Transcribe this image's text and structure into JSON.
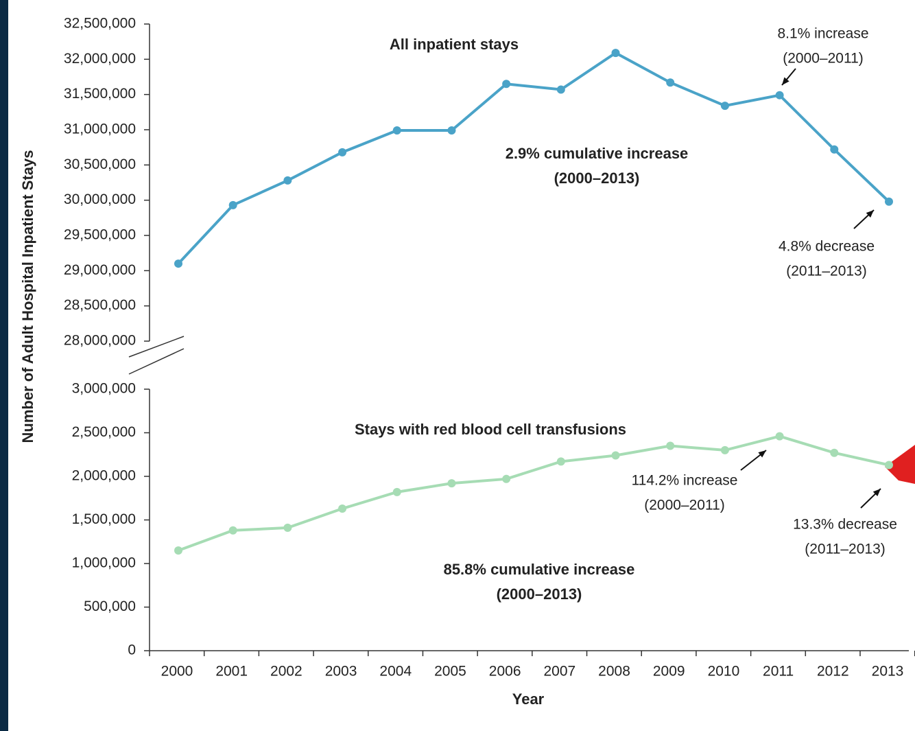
{
  "chart_data": [
    {
      "type": "line",
      "title": "All inpatient stays",
      "ylabel": "Number of Adult Hospital Inpatient Stays",
      "color": "#4aa3c8",
      "values": [
        29100000,
        29930000,
        30280000,
        30680000,
        30990000,
        30990000,
        31650000,
        31570000,
        32090000,
        31670000,
        31340000,
        31490000,
        30720000,
        29980000
      ],
      "ylim": [
        28000000,
        32500000
      ],
      "yticks": [
        {
          "value": 28000000,
          "label": "28,000,000"
        },
        {
          "value": 28500000,
          "label": "28,500,000"
        },
        {
          "value": 29000000,
          "label": "29,000,000"
        },
        {
          "value": 29500000,
          "label": "29,500,000"
        },
        {
          "value": 30000000,
          "label": "30,000,000"
        },
        {
          "value": 30500000,
          "label": "30,500,000"
        },
        {
          "value": 31000000,
          "label": "31,000,000"
        },
        {
          "value": 31500000,
          "label": "31,500,000"
        },
        {
          "value": 32000000,
          "label": "32,000,000"
        },
        {
          "value": 32500000,
          "label": "32,500,000"
        }
      ],
      "annotations": [
        [
          "8.1% increase",
          "(2000–2011)"
        ],
        [
          "2.9% cumulative increase",
          "(2000–2013)"
        ],
        [
          "4.8% decrease",
          "(2011–2013)"
        ]
      ]
    },
    {
      "type": "line",
      "title": "Stays with red blood cell transfusions",
      "xlabel": "Year",
      "color": "#a6dcb4",
      "categories": [
        "2000",
        "2001",
        "2002",
        "2003",
        "2004",
        "2005",
        "2006",
        "2007",
        "2008",
        "2009",
        "2010",
        "2011",
        "2012",
        "2013"
      ],
      "values": [
        1150000,
        1380000,
        1410000,
        1630000,
        1820000,
        1920000,
        1970000,
        2170000,
        2240000,
        2350000,
        2300000,
        2460000,
        2270000,
        2130000
      ],
      "ylim": [
        0,
        3000000
      ],
      "yticks": [
        0,
        {
          "value": 500000,
          "label": "500,000"
        },
        {
          "value": 1000000,
          "label": "1,000,000"
        },
        {
          "value": 1500000,
          "label": "1,500,000"
        },
        {
          "value": 2000000,
          "label": "2,000,000"
        },
        {
          "value": 2500000,
          "label": "2,500,000"
        },
        {
          "value": 3000000,
          "label": "3,000,000"
        }
      ],
      "annotations": [
        [
          "114.2% increase",
          "(2000–2011)"
        ],
        [
          "13.3% decrease",
          "(2011–2013)"
        ],
        [
          "85.8% cumulative increase",
          "(2000–2013)"
        ]
      ]
    }
  ]
}
